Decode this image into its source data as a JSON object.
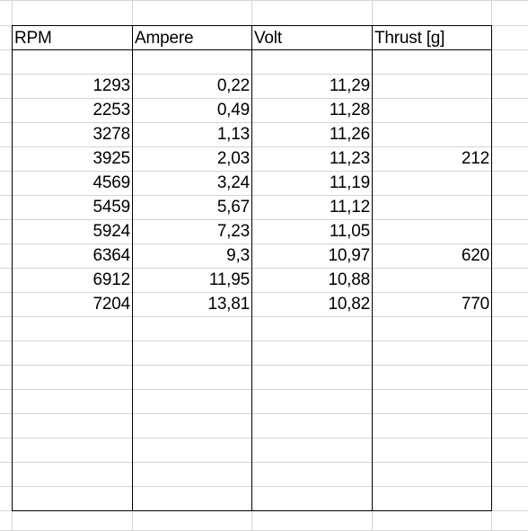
{
  "sheet": {
    "headers": [
      "RPM",
      "Ampere",
      "Volt",
      "Thrust [g]"
    ],
    "rows": [
      [
        "1293",
        "0,22",
        "11,29",
        ""
      ],
      [
        "2253",
        "0,49",
        "11,28",
        ""
      ],
      [
        "3278",
        "1,13",
        "11,26",
        ""
      ],
      [
        "3925",
        "2,03",
        "11,23",
        "212"
      ],
      [
        "4569",
        "3,24",
        "11,19",
        ""
      ],
      [
        "5459",
        "5,67",
        "11,12",
        ""
      ],
      [
        "5924",
        "7,23",
        "11,05",
        ""
      ],
      [
        "6364",
        "9,3",
        "10,97",
        "620"
      ],
      [
        "6912",
        "11,95",
        "10,88",
        ""
      ],
      [
        "7204",
        "13,81",
        "10,82",
        "770"
      ]
    ]
  }
}
